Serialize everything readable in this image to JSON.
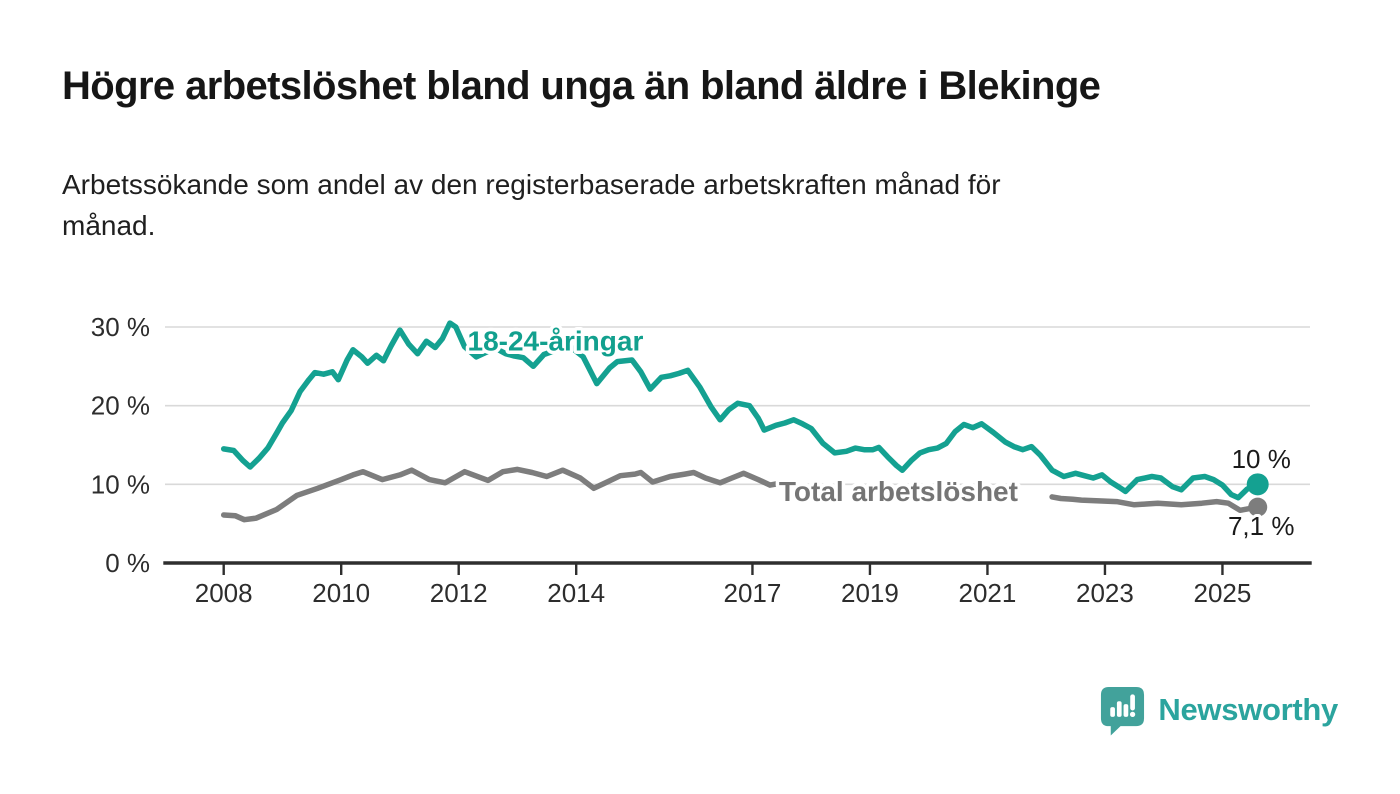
{
  "header": {
    "title": "Högre arbetslöshet bland unga än bland äldre i Blekinge",
    "subtitle": "Arbetssökande som andel av den registerbaserade arbetskraften månad för\nmånad."
  },
  "footer": {
    "brand": "Newsworthy",
    "brand_color": "#2ba49e",
    "logo_icon": "speech-bubble-bar-chart-icon",
    "logo_icon_color": "#42a29b"
  },
  "chart_data": {
    "type": "line",
    "title": "Högre arbetslöshet bland unga än bland äldre i Blekinge",
    "subtitle": "Arbetssökande som andel av den registerbaserade arbetskraften månad för månad.",
    "grid": "horizontal",
    "legend_position": "inline-labels",
    "x_axis": {
      "range": [
        2007.6,
        2026.3
      ],
      "ticks": [
        {
          "v": 2008,
          "label": "2008"
        },
        {
          "v": 2010,
          "label": "2010"
        },
        {
          "v": 2012,
          "label": "2012"
        },
        {
          "v": 2014,
          "label": "2014"
        },
        {
          "v": 2017,
          "label": "2017"
        },
        {
          "v": 2019,
          "label": "2019"
        },
        {
          "v": 2021,
          "label": "2021"
        },
        {
          "v": 2023,
          "label": "2023"
        },
        {
          "v": 2025,
          "label": "2025"
        }
      ]
    },
    "y_axis": {
      "range": [
        0,
        33
      ],
      "unit": "%",
      "ticks": [
        {
          "v": 0,
          "label": "0 %"
        },
        {
          "v": 10,
          "label": "10 %"
        },
        {
          "v": 20,
          "label": "20 %"
        },
        {
          "v": 30,
          "label": "30 %"
        }
      ]
    },
    "series": [
      {
        "id": "total",
        "name": "Total arbetslöshet",
        "color": "#7d7d7d",
        "label_color": "#757575",
        "label_at": [
          2017.45,
          7.85
        ],
        "label_anchor": "start",
        "end_label": "7,1 %",
        "end_label_at": [
          2025.66,
          3.55
        ],
        "end_value": 7.1,
        "dot_radius": 9.5,
        "segments": [
          [
            [
              2008.0,
              6.1
            ],
            [
              2008.2,
              6.0
            ],
            [
              2008.35,
              5.5
            ],
            [
              2008.55,
              5.7
            ],
            [
              2008.9,
              6.8
            ],
            [
              2009.25,
              8.6
            ],
            [
              2009.6,
              9.5
            ],
            [
              2010.0,
              10.6
            ],
            [
              2010.2,
              11.2
            ],
            [
              2010.37,
              11.6
            ],
            [
              2010.7,
              10.6
            ],
            [
              2011.0,
              11.2
            ],
            [
              2011.2,
              11.8
            ],
            [
              2011.5,
              10.6
            ],
            [
              2011.77,
              10.2
            ],
            [
              2012.1,
              11.6
            ],
            [
              2012.5,
              10.5
            ],
            [
              2012.75,
              11.6
            ],
            [
              2013.0,
              11.9
            ],
            [
              2013.25,
              11.5
            ],
            [
              2013.5,
              11.0
            ],
            [
              2013.77,
              11.8
            ],
            [
              2014.07,
              10.8
            ],
            [
              2014.3,
              9.5
            ],
            [
              2014.5,
              10.2
            ],
            [
              2014.75,
              11.1
            ],
            [
              2015.0,
              11.3
            ],
            [
              2015.1,
              11.5
            ],
            [
              2015.3,
              10.3
            ],
            [
              2015.6,
              11.0
            ],
            [
              2015.85,
              11.3
            ],
            [
              2016.0,
              11.5
            ],
            [
              2016.2,
              10.8
            ],
            [
              2016.45,
              10.2
            ],
            [
              2016.65,
              10.8
            ],
            [
              2016.85,
              11.4
            ],
            [
              2017.1,
              10.6
            ],
            [
              2017.3,
              9.9
            ],
            [
              2017.45,
              10.1
            ]
          ],
          [
            [
              2022.1,
              8.4
            ],
            [
              2022.25,
              8.2
            ],
            [
              2022.45,
              8.1
            ],
            [
              2022.6,
              8.0
            ],
            [
              2022.9,
              7.9
            ],
            [
              2023.2,
              7.8
            ],
            [
              2023.5,
              7.4
            ],
            [
              2023.7,
              7.5
            ],
            [
              2023.9,
              7.6
            ],
            [
              2024.1,
              7.5
            ],
            [
              2024.3,
              7.4
            ],
            [
              2024.65,
              7.6
            ],
            [
              2024.9,
              7.8
            ],
            [
              2025.1,
              7.6
            ],
            [
              2025.3,
              6.7
            ],
            [
              2025.6,
              7.1
            ]
          ]
        ]
      },
      {
        "id": "youth",
        "name": "18-24-åringar",
        "color": "#14a191",
        "label_color": "#12a08e",
        "label_at": [
          2012.15,
          27.0
        ],
        "label_anchor": "start",
        "end_label": "10 %",
        "end_label_at": [
          2025.66,
          12.05
        ],
        "end_value": 10.0,
        "dot_radius": 11,
        "segments": [
          [
            [
              2008.0,
              14.5
            ],
            [
              2008.17,
              14.3
            ],
            [
              2008.33,
              13.0
            ],
            [
              2008.45,
              12.2
            ],
            [
              2008.6,
              13.3
            ],
            [
              2008.75,
              14.6
            ],
            [
              2008.9,
              16.5
            ],
            [
              2009.0,
              17.8
            ],
            [
              2009.15,
              19.4
            ],
            [
              2009.3,
              21.8
            ],
            [
              2009.45,
              23.3
            ],
            [
              2009.55,
              24.2
            ],
            [
              2009.7,
              24.0
            ],
            [
              2009.85,
              24.3
            ],
            [
              2009.95,
              23.3
            ],
            [
              2010.1,
              25.8
            ],
            [
              2010.2,
              27.1
            ],
            [
              2010.35,
              26.2
            ],
            [
              2010.45,
              25.4
            ],
            [
              2010.6,
              26.4
            ],
            [
              2010.72,
              25.7
            ],
            [
              2010.85,
              27.6
            ],
            [
              2011.0,
              29.6
            ],
            [
              2011.15,
              27.8
            ],
            [
              2011.3,
              26.6
            ],
            [
              2011.45,
              28.2
            ],
            [
              2011.6,
              27.4
            ],
            [
              2011.72,
              28.5
            ],
            [
              2011.85,
              30.5
            ],
            [
              2011.95,
              30.0
            ],
            [
              2012.1,
              27.5
            ],
            [
              2012.3,
              26.2
            ],
            [
              2012.5,
              26.9
            ],
            [
              2012.65,
              27.2
            ],
            [
              2012.8,
              26.6
            ],
            [
              2012.95,
              26.3
            ],
            [
              2013.1,
              26.1
            ],
            [
              2013.27,
              25.0
            ],
            [
              2013.45,
              26.5
            ],
            [
              2013.6,
              26.9
            ],
            [
              2013.75,
              27.2
            ],
            [
              2013.9,
              27.5
            ],
            [
              2014.12,
              26.2
            ],
            [
              2014.35,
              22.8
            ],
            [
              2014.57,
              24.8
            ],
            [
              2014.7,
              25.6
            ],
            [
              2014.95,
              25.8
            ],
            [
              2015.1,
              24.3
            ],
            [
              2015.26,
              22.1
            ],
            [
              2015.45,
              23.6
            ],
            [
              2015.6,
              23.8
            ],
            [
              2015.75,
              24.1
            ],
            [
              2015.9,
              24.5
            ],
            [
              2016.1,
              22.4
            ],
            [
              2016.3,
              19.8
            ],
            [
              2016.45,
              18.2
            ],
            [
              2016.6,
              19.5
            ],
            [
              2016.75,
              20.3
            ],
            [
              2016.95,
              20.0
            ],
            [
              2017.1,
              18.4
            ],
            [
              2017.2,
              16.9
            ],
            [
              2017.4,
              17.5
            ],
            [
              2017.55,
              17.8
            ],
            [
              2017.7,
              18.2
            ],
            [
              2017.85,
              17.7
            ],
            [
              2018.0,
              17.1
            ],
            [
              2018.2,
              15.2
            ],
            [
              2018.4,
              14.0
            ],
            [
              2018.6,
              14.2
            ],
            [
              2018.75,
              14.6
            ],
            [
              2018.9,
              14.4
            ],
            [
              2019.05,
              14.4
            ],
            [
              2019.15,
              14.7
            ],
            [
              2019.3,
              13.5
            ],
            [
              2019.45,
              12.4
            ],
            [
              2019.55,
              11.8
            ],
            [
              2019.7,
              13.0
            ],
            [
              2019.85,
              14.0
            ],
            [
              2020.0,
              14.4
            ],
            [
              2020.15,
              14.6
            ],
            [
              2020.3,
              15.2
            ],
            [
              2020.45,
              16.7
            ],
            [
              2020.6,
              17.6
            ],
            [
              2020.75,
              17.2
            ],
            [
              2020.9,
              17.7
            ],
            [
              2021.1,
              16.6
            ],
            [
              2021.3,
              15.4
            ],
            [
              2021.45,
              14.8
            ],
            [
              2021.6,
              14.4
            ],
            [
              2021.75,
              14.8
            ],
            [
              2021.9,
              13.7
            ],
            [
              2022.1,
              11.8
            ],
            [
              2022.3,
              11.0
            ],
            [
              2022.5,
              11.4
            ],
            [
              2022.65,
              11.1
            ],
            [
              2022.8,
              10.8
            ],
            [
              2022.95,
              11.2
            ],
            [
              2023.1,
              10.3
            ],
            [
              2023.25,
              9.6
            ],
            [
              2023.35,
              9.1
            ],
            [
              2023.55,
              10.6
            ],
            [
              2023.8,
              11.0
            ],
            [
              2023.95,
              10.8
            ],
            [
              2024.15,
              9.7
            ],
            [
              2024.3,
              9.3
            ],
            [
              2024.5,
              10.8
            ],
            [
              2024.7,
              11.0
            ],
            [
              2024.85,
              10.6
            ],
            [
              2025.0,
              9.9
            ],
            [
              2025.15,
              8.7
            ],
            [
              2025.27,
              8.3
            ],
            [
              2025.42,
              9.4
            ],
            [
              2025.6,
              10.0
            ]
          ]
        ]
      }
    ]
  }
}
